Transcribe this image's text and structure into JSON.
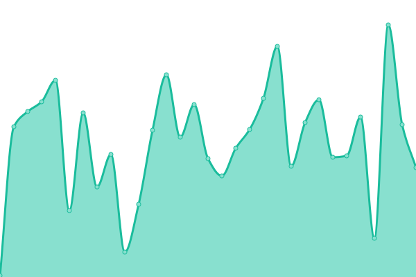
{
  "chart_data": {
    "type": "area",
    "title": "",
    "xlabel": "",
    "ylabel": "",
    "x": [
      0,
      1,
      2,
      3,
      4,
      5,
      6,
      7,
      8,
      9,
      10,
      11,
      12,
      13,
      14,
      15,
      16,
      17,
      18,
      19,
      20,
      21,
      22,
      23,
      24,
      25,
      26,
      27,
      28,
      29,
      30
    ],
    "values": [
      2,
      217,
      239,
      253,
      284,
      96,
      237,
      130,
      177,
      36,
      105,
      212,
      292,
      202,
      249,
      171,
      146,
      186,
      213,
      258,
      333,
      160,
      223,
      256,
      173,
      175,
      231,
      56,
      364,
      220,
      158
    ],
    "ylim": [
      0,
      400
    ],
    "xlim": [
      0,
      30
    ],
    "grid": false,
    "axes_visible": false,
    "smooth": true,
    "markers": true,
    "colors": {
      "line": "#1abc9c",
      "fill": "#88e0cf",
      "marker_fill": "#88e0cf",
      "marker_stroke": "#1abc9c"
    }
  }
}
